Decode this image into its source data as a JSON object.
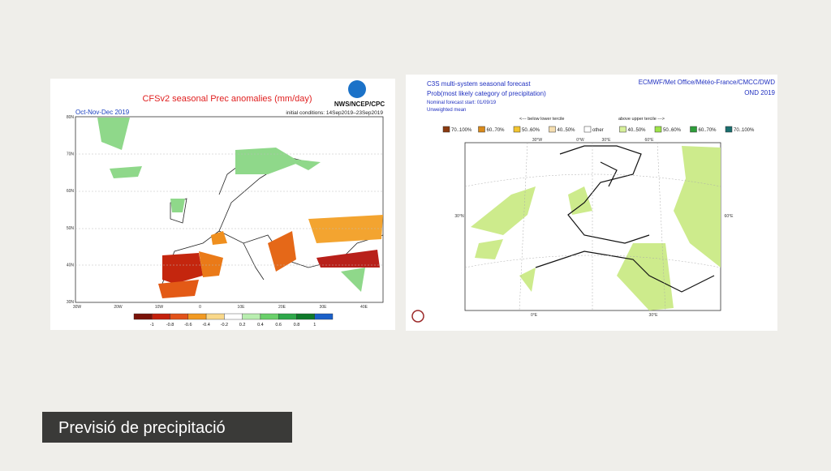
{
  "left_map": {
    "title": "CFSv2 seasonal Prec anomalies (mm/day)",
    "period": "Oct-Nov-Dec 2019",
    "initial": "initial conditions: 14Sep2019–23Sep2019",
    "agency": "NWS/NCEP/CPC",
    "lat_labels": [
      "80N",
      "70N",
      "60N",
      "50N",
      "40N",
      "30N"
    ],
    "lon_labels": [
      "30W",
      "20W",
      "10W",
      "0",
      "10E",
      "20E",
      "30E",
      "40E"
    ],
    "colorbar_labels": [
      "-1",
      "-0.8",
      "-0.6",
      "-0.4",
      "-0.2",
      "0.2",
      "0.4",
      "0.6",
      "0.8",
      "1"
    ]
  },
  "right_map": {
    "title": "C3S multi-system seasonal forecast",
    "subtitle": "Prob(most likely category of precipitation)",
    "start": "Nominal forecast start: 01/09/19",
    "mean": "Unweighted mean",
    "centres": "ECMWF/Met Office/Météo-France/CMCC/DWD",
    "season": "OND 2019",
    "below": "<--- below lower tercile",
    "above": "above upper tercile --->",
    "legend": [
      "70..100%",
      "60..70%",
      "50..60%",
      "40..50%",
      "other",
      "40..50%",
      "50..60%",
      "60..70%",
      "70..100%"
    ],
    "top_labels": [
      "30°W",
      "0°W",
      "30°E",
      "60°E"
    ],
    "side_labels": [
      "30°N",
      "60°E"
    ],
    "bottom_labels": [
      "0°E",
      "30°E"
    ]
  },
  "caption": "Previsió de precipitació"
}
